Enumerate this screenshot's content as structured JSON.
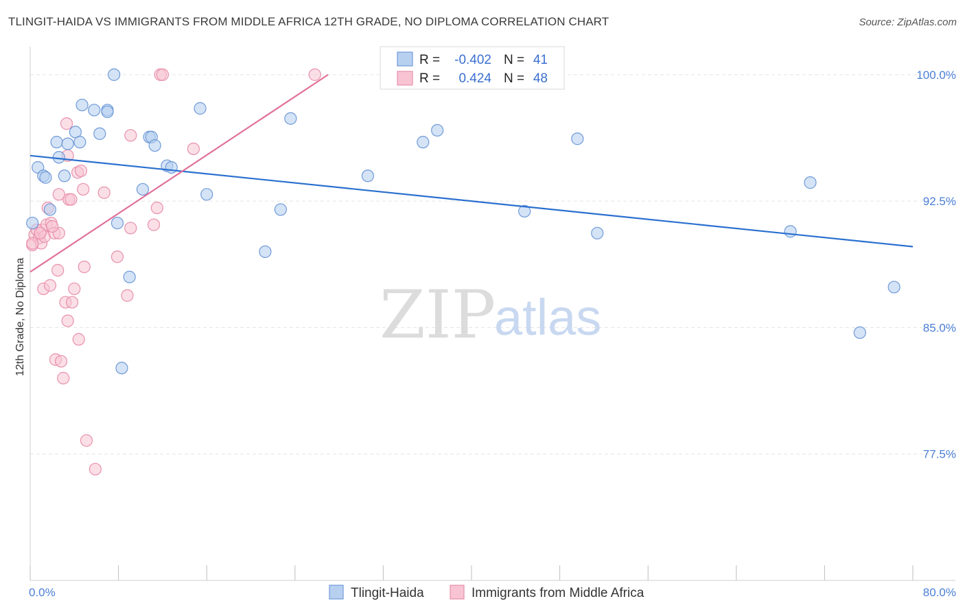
{
  "header": {
    "title": "TLINGIT-HAIDA VS IMMIGRANTS FROM MIDDLE AFRICA 12TH GRADE, NO DIPLOMA CORRELATION CHART",
    "source": "Source: ZipAtlas.com"
  },
  "watermark": {
    "zip": "ZIP",
    "atlas": "atlas"
  },
  "legend": {
    "rows": [
      {
        "r_label": "R =",
        "r_value": "-0.402",
        "n_label": "N =",
        "n_value": "41"
      },
      {
        "r_label": "R =",
        "r_value": "0.424",
        "n_label": "N =",
        "n_value": "48"
      }
    ]
  },
  "bottom_legend": {
    "series1": "Tlingit-Haida",
    "series2": "Immigrants from Middle Africa"
  },
  "colors": {
    "series1_fill": "#b8d0f0",
    "series1_stroke": "#6f9ad8",
    "series1_line": "#2a6fcf",
    "series2_fill": "#f8c4d4",
    "series2_stroke": "#e890ac",
    "series2_line": "#e0709a",
    "axis_text": "#4a7fd4",
    "grid": "#e4e4e4"
  },
  "chart_data": {
    "type": "scatter",
    "title": "TLINGIT-HAIDA VS IMMIGRANTS FROM MIDDLE AFRICA 12TH GRADE, NO DIPLOMA CORRELATION CHART",
    "xlabel": "",
    "ylabel": "12th Grade, No Diploma",
    "xlim": [
      0,
      80
    ],
    "ylim": [
      70.0,
      101.5
    ],
    "x_tick_labels": [
      "0.0%",
      "80.0%"
    ],
    "y_ticks": [
      77.5,
      85.0,
      92.5,
      100.0
    ],
    "y_tick_labels": [
      "77.5%",
      "85.0%",
      "92.5%",
      "100.0%"
    ],
    "grid": true,
    "series": [
      {
        "name": "Tlingit-Haida",
        "r": -0.402,
        "n": 41,
        "trend": {
          "x": [
            0,
            80
          ],
          "y": [
            95.2,
            89.8
          ]
        },
        "points": [
          [
            0.2,
            91.2
          ],
          [
            0.7,
            94.5
          ],
          [
            1.2,
            94.0
          ],
          [
            1.4,
            93.9
          ],
          [
            1.8,
            92.0
          ],
          [
            2.4,
            96.0
          ],
          [
            2.6,
            95.1
          ],
          [
            3.1,
            94.0
          ],
          [
            3.4,
            95.9
          ],
          [
            4.1,
            96.6
          ],
          [
            4.5,
            96.0
          ],
          [
            4.7,
            98.2
          ],
          [
            5.8,
            97.9
          ],
          [
            6.3,
            96.5
          ],
          [
            7.0,
            97.9
          ],
          [
            7.0,
            97.8
          ],
          [
            7.6,
            100.0
          ],
          [
            7.9,
            91.2
          ],
          [
            8.3,
            82.6
          ],
          [
            9.0,
            88.0
          ],
          [
            10.2,
            93.2
          ],
          [
            10.8,
            96.3
          ],
          [
            11.0,
            96.3
          ],
          [
            11.3,
            95.8
          ],
          [
            12.4,
            94.6
          ],
          [
            12.8,
            94.5
          ],
          [
            15.4,
            98.0
          ],
          [
            16.0,
            92.9
          ],
          [
            21.3,
            89.5
          ],
          [
            22.7,
            92.0
          ],
          [
            23.6,
            97.4
          ],
          [
            30.6,
            94.0
          ],
          [
            35.6,
            96.0
          ],
          [
            36.9,
            96.7
          ],
          [
            44.8,
            91.9
          ],
          [
            49.6,
            96.2
          ],
          [
            51.4,
            90.6
          ],
          [
            68.9,
            90.7
          ],
          [
            70.7,
            93.6
          ],
          [
            78.3,
            87.4
          ],
          [
            75.2,
            84.7
          ]
        ]
      },
      {
        "name": "Immigrants from Middle Africa",
        "r": 0.424,
        "n": 48,
        "trend": {
          "x": [
            0,
            27
          ],
          "y": [
            88.3,
            100.0
          ]
        },
        "points": [
          [
            0.2,
            89.9
          ],
          [
            0.4,
            90.5
          ],
          [
            0.6,
            90.8
          ],
          [
            0.8,
            90.3
          ],
          [
            1.0,
            90.0
          ],
          [
            1.1,
            90.8
          ],
          [
            1.3,
            90.4
          ],
          [
            1.5,
            91.1
          ],
          [
            1.6,
            92.1
          ],
          [
            1.9,
            91.2
          ],
          [
            2.2,
            90.6
          ],
          [
            2.6,
            90.6
          ],
          [
            1.2,
            87.3
          ],
          [
            1.8,
            87.5
          ],
          [
            2.5,
            88.4
          ],
          [
            2.3,
            83.1
          ],
          [
            2.8,
            83.0
          ],
          [
            3.0,
            82.0
          ],
          [
            3.2,
            86.5
          ],
          [
            3.4,
            85.4
          ],
          [
            3.3,
            97.1
          ],
          [
            3.4,
            95.2
          ],
          [
            3.5,
            92.6
          ],
          [
            3.7,
            92.6
          ],
          [
            2.6,
            92.9
          ],
          [
            3.8,
            86.5
          ],
          [
            4.0,
            87.3
          ],
          [
            4.3,
            94.2
          ],
          [
            4.4,
            84.3
          ],
          [
            4.6,
            94.3
          ],
          [
            4.8,
            93.2
          ],
          [
            4.9,
            88.6
          ],
          [
            5.1,
            78.3
          ],
          [
            5.9,
            76.6
          ],
          [
            6.7,
            93.0
          ],
          [
            7.9,
            89.2
          ],
          [
            8.8,
            86.9
          ],
          [
            9.1,
            96.4
          ],
          [
            9.1,
            90.9
          ],
          [
            11.2,
            91.1
          ],
          [
            11.5,
            92.1
          ],
          [
            11.8,
            100.0
          ],
          [
            12.0,
            100.0
          ],
          [
            14.8,
            95.6
          ],
          [
            25.8,
            100.0
          ],
          [
            0.2,
            90.0
          ],
          [
            0.9,
            90.6
          ],
          [
            2.0,
            91.0
          ]
        ]
      }
    ]
  }
}
